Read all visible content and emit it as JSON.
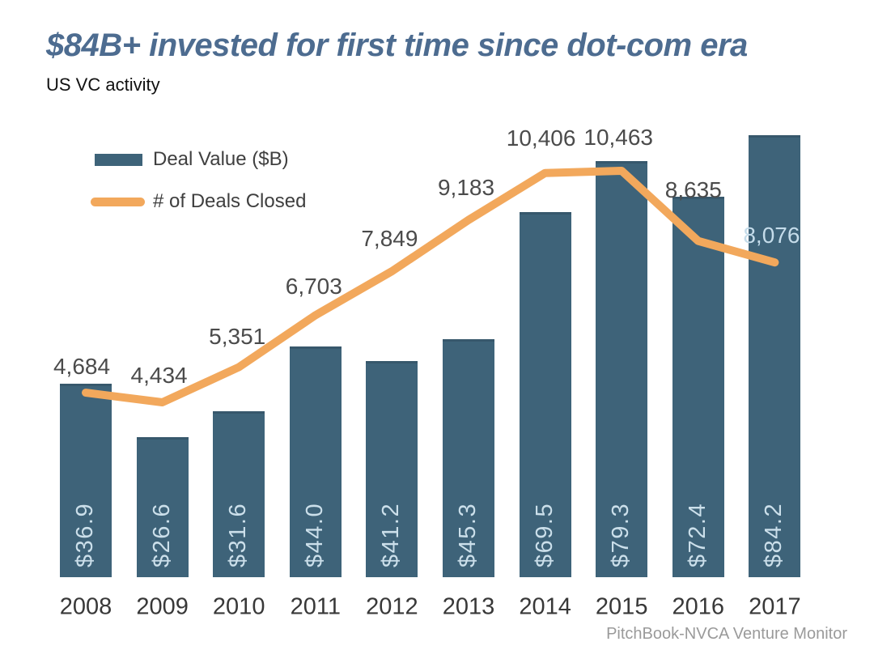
{
  "page": {
    "title": "$84B+ invested for first time since dot-com era",
    "subtitle": "US VC activity",
    "source": "PitchBook-NVCA Venture Monitor"
  },
  "legend": [
    {
      "label": "Deal Value ($B)",
      "swatch": "bar"
    },
    {
      "label": "# of Deals Closed",
      "swatch": "line"
    }
  ],
  "colors": {
    "bar": "#3E6379",
    "line": "#F2A85C",
    "title": "#4D6C90",
    "bar_label": "#CBDFEA",
    "line_label": "#4B4B4B",
    "line_label_on_bar": "#C5DCEA",
    "axis_label": "#383838",
    "source": "#9A9A9A"
  },
  "chart_data": {
    "type": "bar+line combo",
    "title": "$84B+ invested for first time since dot-com era",
    "subtitle": "US VC activity",
    "categories": [
      "2008",
      "2009",
      "2010",
      "2011",
      "2012",
      "2013",
      "2014",
      "2015",
      "2016",
      "2017"
    ],
    "series": [
      {
        "name": "Deal Value ($B)",
        "type": "bar",
        "values": [
          36.9,
          26.6,
          31.6,
          44.0,
          41.2,
          45.3,
          69.5,
          79.3,
          72.4,
          84.2
        ],
        "labels": [
          "$36.9",
          "$26.6",
          "$31.6",
          "$44.0",
          "$41.2",
          "$45.3",
          "$69.5",
          "$79.3",
          "$72.4",
          "$84.2"
        ],
        "label_placement": "inside bar bottom, rotated 90 degrees"
      },
      {
        "name": "# of Deals Closed",
        "type": "line",
        "values": [
          4684,
          4434,
          5351,
          6703,
          7849,
          9183,
          10406,
          10463,
          8635,
          8076
        ],
        "labels": [
          "4,684",
          "4,434",
          "5,351",
          "6,703",
          "7,849",
          "9,183",
          "10,406",
          "10,463",
          "8,635",
          "8,076"
        ],
        "label_placement": "above points"
      }
    ],
    "xlabel": "",
    "ylabel_bars": "Deal Value ($B)",
    "ylabel_line": "# of Deals Closed",
    "bar_axis_range": [
      0,
      88
    ],
    "line_axis_range": [
      0,
      11500
    ],
    "grid": false,
    "axes_shown": false,
    "legend_position": "top-left",
    "source": "PitchBook-NVCA Venture Monitor"
  }
}
